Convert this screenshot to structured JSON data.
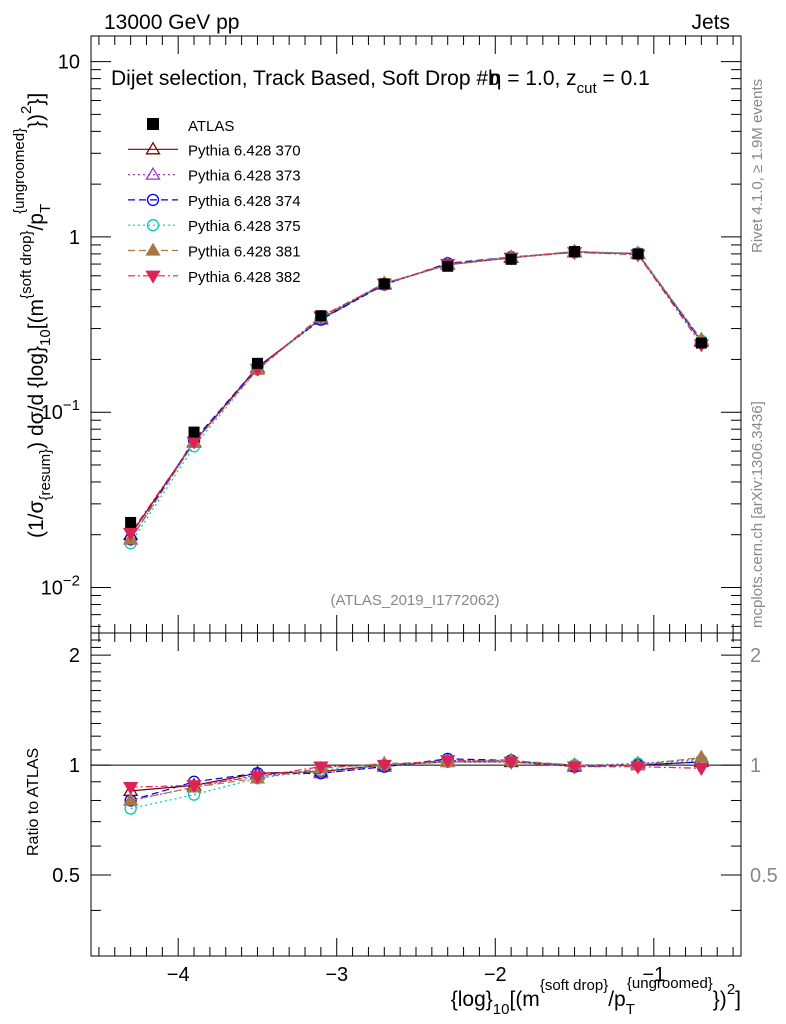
{
  "header": {
    "left": "13000 GeV pp",
    "right": "Jets"
  },
  "plot_title": {
    "text": "Dijet selection, Track Based, Soft Drop #b",
    "eta_part": "η = 1.0, z",
    "z_sub": "cut",
    "z_rest": " = 0.1"
  },
  "watermark": "(ATLAS_2019_I1772062)",
  "side_text": {
    "rivet": "Rivet 4.1.0, ≥ 1.9M events",
    "mcplots": "mcplots.cern.ch [arXiv:1306.3436]"
  },
  "axes": {
    "ylabel_main": {
      "p1": "(1/σ",
      "p1_sub": "{resum}",
      "p2": ") dσ/d {log}",
      "p2_sub": "10",
      "p3": "[(m",
      "p3_sup": "{soft drop}",
      "p4": "/p",
      "p4_sub": "T",
      "p4_sup": "{ungroomed}",
      "p5": "})",
      "p5_sup": "2",
      "p6": "}]"
    },
    "ylabel_ratio": "Ratio to ATLAS",
    "xlabel": {
      "p1": "{log}",
      "p1_sub": "10",
      "p2": "[(m",
      "p2_sup": "{soft drop}",
      "p3": "/p",
      "p3_sub": "T",
      "p3_sup": "{ungroomed}",
      "p4": "})",
      "p4_sup": "2",
      "p5": "]"
    },
    "x_ticks": [
      {
        "value": -4,
        "label": "−4"
      },
      {
        "value": -3,
        "label": "−3"
      },
      {
        "value": -2,
        "label": "−2"
      },
      {
        "value": -1,
        "label": "−1"
      }
    ],
    "main_y_ticks": [
      {
        "value": 10,
        "label": "10",
        "exp": ""
      },
      {
        "value": 1,
        "label": "1",
        "exp": ""
      },
      {
        "value": 0.1,
        "label": "10",
        "exp": "−1"
      },
      {
        "value": 0.01,
        "label": "10",
        "exp": "−2"
      }
    ],
    "ratio_y_ticks": [
      {
        "value": 2,
        "label": "2"
      },
      {
        "value": 1,
        "label": "1"
      },
      {
        "value": 0.5,
        "label": "0.5"
      }
    ]
  },
  "chart_data": {
    "type": "line",
    "x_range": [
      -4.55,
      -0.45
    ],
    "main_y_range": [
      0.0055,
      14
    ],
    "main_y_scale": "log",
    "ratio_y_range": [
      0.3,
      2.3
    ],
    "ratio_y_scale": "log",
    "legend_position": "top-left",
    "x": [
      -4.3,
      -3.9,
      -3.5,
      -3.1,
      -2.7,
      -2.3,
      -1.9,
      -1.5,
      -1.1,
      -0.7
    ],
    "data": {
      "name": "ATLAS",
      "color": "#000000",
      "values": [
        0.0235,
        0.077,
        0.19,
        0.355,
        0.54,
        0.68,
        0.745,
        0.825,
        0.8,
        0.248
      ]
    },
    "series": [
      {
        "name": "Pythia 6.428 370",
        "color": "#800000",
        "marker": "triangle-up-open",
        "dash": "",
        "ratio": [
          0.85,
          0.88,
          0.95,
          0.96,
          1.0,
          1.02,
          1.02,
          1.0,
          1.0,
          1.02
        ]
      },
      {
        "name": "Pythia 6.428 373",
        "color": "#9933cc",
        "marker": "triangle-up-open",
        "dash": "2,3",
        "ratio": [
          0.8,
          0.87,
          0.94,
          0.95,
          0.99,
          1.03,
          1.03,
          0.99,
          1.01,
          1.04
        ]
      },
      {
        "name": "Pythia 6.428 374",
        "color": "#0000dd",
        "marker": "circle-open",
        "dash": "7,4",
        "ratio": [
          0.8,
          0.9,
          0.95,
          0.95,
          0.99,
          1.04,
          1.03,
          0.99,
          1.0,
          1.02
        ]
      },
      {
        "name": "Pythia 6.428 375",
        "color": "#00ccbb",
        "marker": "circle-open",
        "dash": "2,3",
        "ratio": [
          0.76,
          0.83,
          0.92,
          0.97,
          1.0,
          1.02,
          1.02,
          1.0,
          1.01,
          1.03
        ]
      },
      {
        "name": "Pythia 6.428 381",
        "color": "#aa7744",
        "marker": "triangle-up-filled",
        "dash": "7,4",
        "ratio": [
          0.8,
          0.87,
          0.92,
          0.98,
          1.01,
          1.02,
          1.03,
          1.0,
          1.0,
          1.05
        ]
      },
      {
        "name": "Pythia 6.428 382",
        "color": "#dd2255",
        "marker": "triangle-down-filled",
        "dash": "7,3,2,3",
        "ratio": [
          0.87,
          0.88,
          0.93,
          0.99,
          1.0,
          1.03,
          1.02,
          0.99,
          0.99,
          0.98
        ]
      }
    ]
  }
}
